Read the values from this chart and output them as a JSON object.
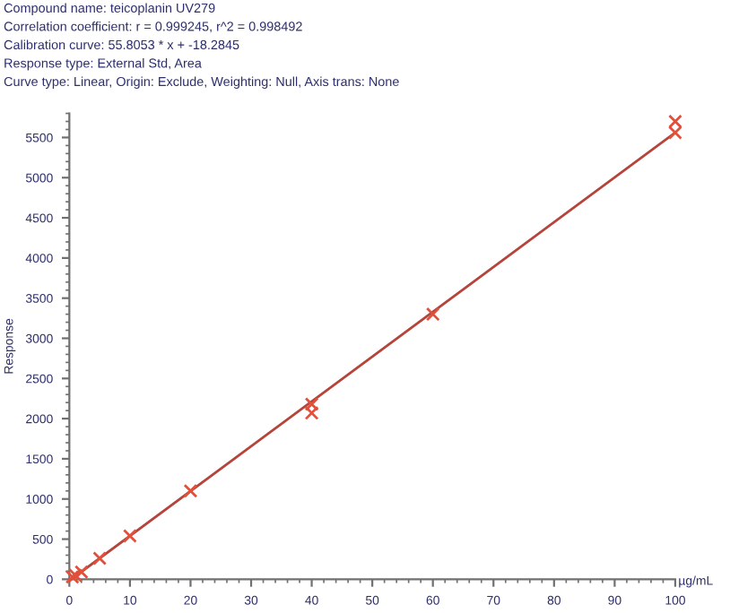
{
  "chart_data": {
    "type": "scatter",
    "annotations": [
      "Compound name: teicoplanin UV279",
      "Correlation coefficient: r = 0.999245, r^2 = 0.998492",
      "Calibration curve: 55.8053 * x + -18.2845",
      "Response type: External Std, Area",
      "Curve type: Linear, Origin: Exclude, Weighting: Null, Axis trans: None"
    ],
    "xlabel": "µg/mL",
    "ylabel": "Response",
    "series": [
      {
        "type": "line",
        "color": "#b5443a",
        "x": [
          0.5,
          100
        ],
        "values": [
          10,
          5562
        ],
        "marker": "none"
      },
      {
        "color": "#e0503a",
        "x": [
          0.5,
          1,
          2,
          5,
          10,
          20,
          40,
          40,
          60,
          100,
          100
        ],
        "values": [
          30,
          50,
          90,
          260,
          540,
          1100,
          2070,
          2180,
          3300,
          5560,
          5700
        ],
        "marker": "cross"
      }
    ],
    "xlim": [
      0,
      100
    ],
    "ylim": [
      0,
      5800
    ],
    "xticks": [
      0,
      10,
      20,
      30,
      40,
      50,
      60,
      70,
      80,
      90,
      100
    ],
    "yticks": [
      0,
      500,
      1000,
      1500,
      2000,
      2500,
      3000,
      3500,
      4000,
      4500,
      5000,
      5500
    ],
    "grid": false,
    "legend": false
  }
}
